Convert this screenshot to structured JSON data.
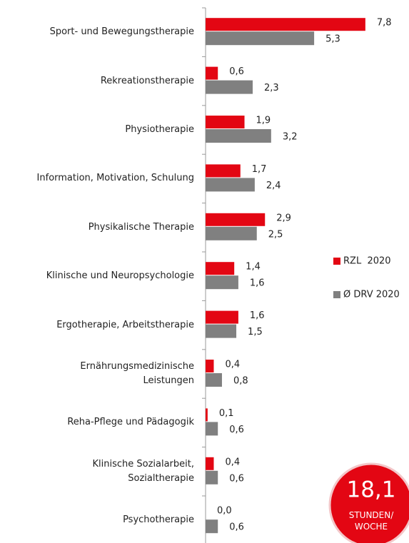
{
  "chart_data": {
    "type": "bar",
    "orientation": "horizontal",
    "categories": [
      "Sport- und Bewegungstherapie",
      "Rekreationstherapie",
      "Physiotherapie",
      "Information, Motivation, Schulung",
      "Physikalische Therapie",
      "Klinische und Neuropsychologie",
      "Ergotherapie, Arbeitstherapie",
      "Ernährungsmedizinische\nLeistungen",
      "Reha-Pflege und Pädagogik",
      "Klinische Sozialarbeit,\nSozialtherapie",
      "Psychotherapie"
    ],
    "series": [
      {
        "name": "RZL  2020",
        "color": "#e30613",
        "values": [
          7.8,
          0.6,
          1.9,
          1.7,
          2.9,
          1.4,
          1.6,
          0.4,
          0.1,
          0.4,
          0.0
        ],
        "value_labels": [
          "7,8",
          "0,6",
          "1,9",
          "1,7",
          "2,9",
          "1,4",
          "1,6",
          "0,4",
          "0,1",
          "0,4",
          "0,0"
        ]
      },
      {
        "name": "Ø DRV 2020",
        "color": "#808080",
        "values": [
          5.3,
          2.3,
          3.2,
          2.4,
          2.5,
          1.6,
          1.5,
          0.8,
          0.6,
          0.6,
          0.6
        ],
        "value_labels": [
          "5,3",
          "2,3",
          "3,2",
          "2,4",
          "2,5",
          "1,6",
          "1,5",
          "0,8",
          "0,6",
          "0,6",
          "0,6"
        ]
      }
    ],
    "xlim": [
      0,
      9
    ],
    "legend": "right",
    "badge": {
      "value": "18,1",
      "unit": "STUNDEN/\nWOCHE"
    }
  }
}
